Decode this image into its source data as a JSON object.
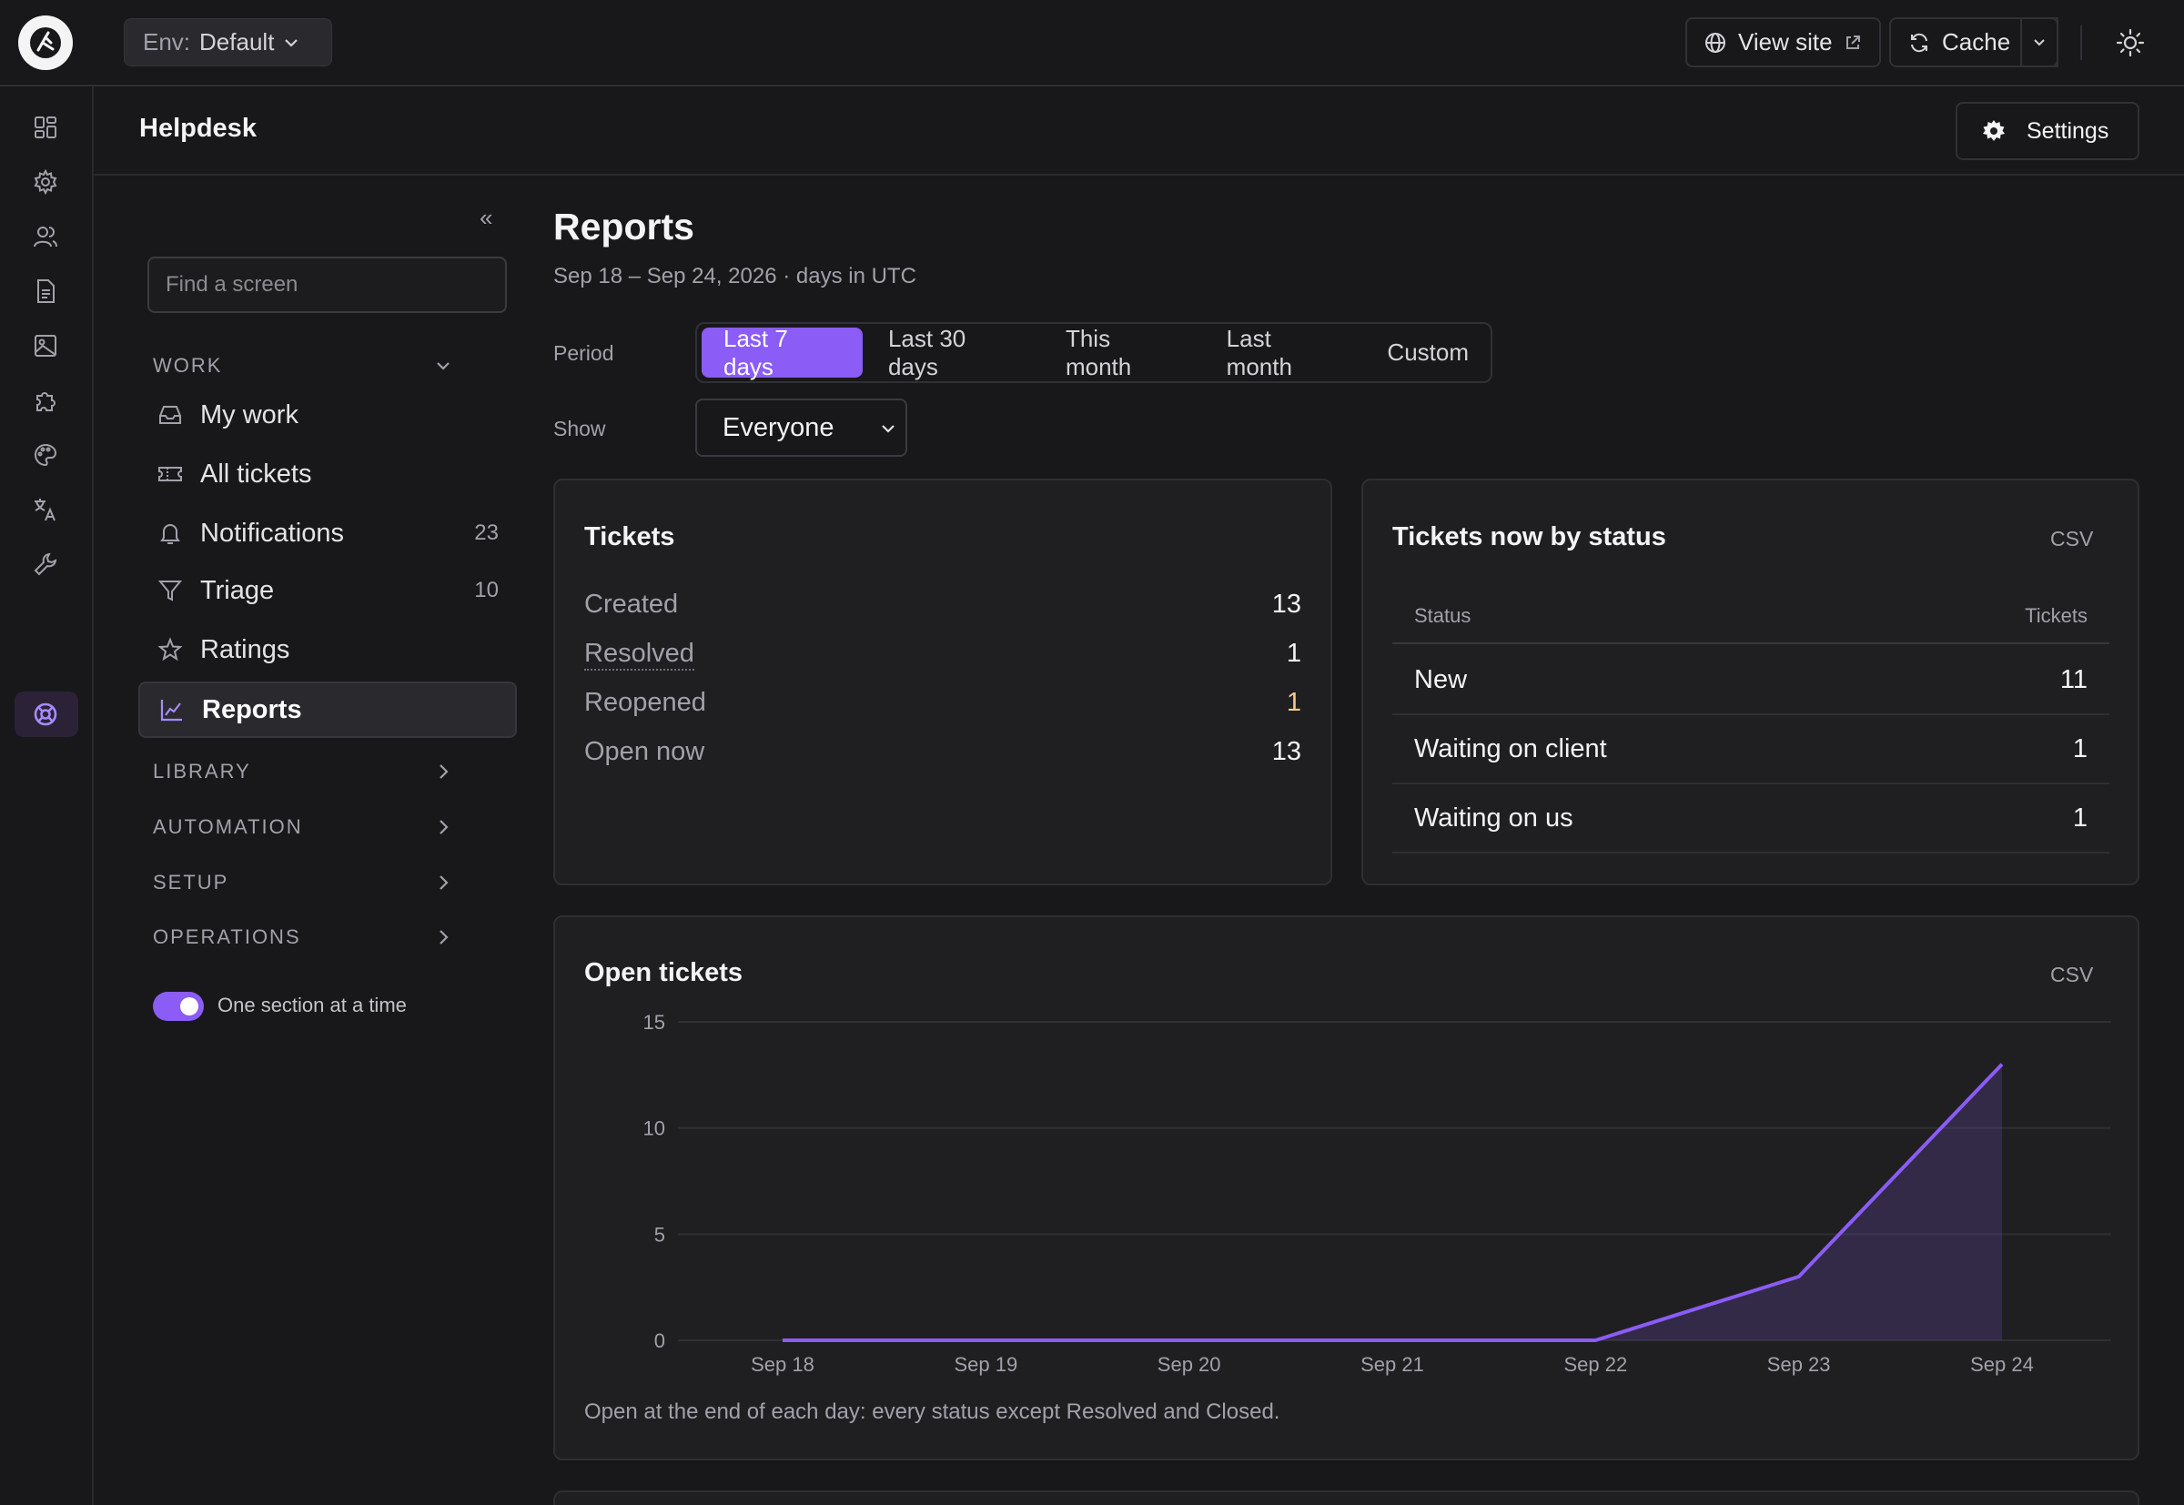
{
  "topbar": {
    "env_label": "Env:",
    "env_value": "Default",
    "view_site": "View site",
    "cache": "Cache"
  },
  "header": {
    "title": "Helpdesk",
    "settings": "Settings"
  },
  "sidebar": {
    "search_placeholder": "Find a screen",
    "work_heading": "WORK",
    "items": [
      {
        "label": "My work",
        "count": ""
      },
      {
        "label": "All tickets",
        "count": ""
      },
      {
        "label": "Notifications",
        "count": "23"
      },
      {
        "label": "Triage",
        "count": "10"
      },
      {
        "label": "Ratings",
        "count": ""
      },
      {
        "label": "Reports",
        "count": ""
      }
    ],
    "sections": [
      "LIBRARY",
      "AUTOMATION",
      "SETUP",
      "OPERATIONS"
    ],
    "toggle_label": "One section at a time"
  },
  "main": {
    "title": "Reports",
    "subtitle": "Sep 18 – Sep 24, 2026 · days in UTC",
    "period_label": "Period",
    "periods": [
      "Last 7 days",
      "Last 30 days",
      "This month",
      "Last month",
      "Custom"
    ],
    "active_period": "Last 7 days",
    "show_label": "Show",
    "show_value": "Everyone"
  },
  "tickets_card": {
    "title": "Tickets",
    "rows": [
      {
        "label": "Created",
        "value": "13"
      },
      {
        "label": "Resolved",
        "value": "1"
      },
      {
        "label": "Reopened",
        "value": "1"
      },
      {
        "label": "Open now",
        "value": "13"
      }
    ]
  },
  "status_card": {
    "title": "Tickets now by status",
    "csv": "CSV",
    "col_status": "Status",
    "col_tickets": "Tickets",
    "rows": [
      {
        "status": "New",
        "tickets": "11"
      },
      {
        "status": "Waiting on client",
        "tickets": "1"
      },
      {
        "status": "Waiting on us",
        "tickets": "1"
      }
    ]
  },
  "open_card": {
    "title": "Open tickets",
    "csv": "CSV",
    "note": "Open at the end of each day: every status except Resolved and Closed."
  },
  "colors": {
    "accent": "#8b5cf6",
    "background": "#18181b",
    "card": "#1f1f22",
    "reopened": "#f5c98b"
  },
  "chart_data": {
    "type": "area",
    "title": "Open tickets",
    "categories": [
      "Sep 18",
      "Sep 19",
      "Sep 20",
      "Sep 21",
      "Sep 22",
      "Sep 23",
      "Sep 24"
    ],
    "values": [
      0,
      0,
      0,
      0,
      0,
      3,
      13
    ],
    "yticks": [
      0,
      5,
      10,
      15
    ],
    "ylim": [
      0,
      15
    ],
    "grid": true,
    "legend": "none"
  }
}
